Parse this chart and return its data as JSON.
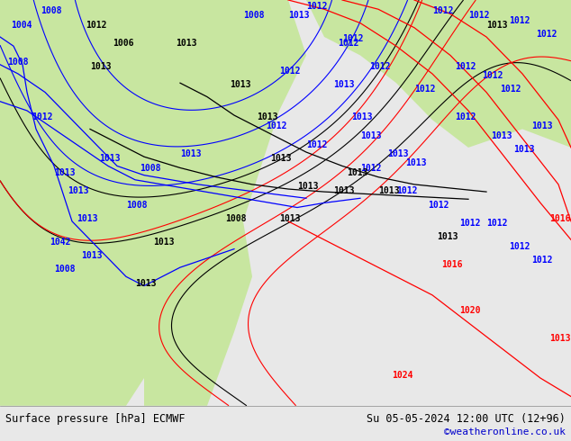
{
  "title_left": "Surface pressure [hPa] ECMWF",
  "title_right": "Su 05-05-2024 12:00 UTC (12+96)",
  "watermark": "©weatheronline.co.uk",
  "bg_color": "#e8e8e8",
  "map_bg_color": "#f0f0f0",
  "land_color": "#c8e6a0",
  "bottom_bar_color": "#f0f0f0",
  "bottom_text_color": "#000000",
  "watermark_color": "#0000cc",
  "figsize": [
    6.34,
    4.9
  ],
  "dpi": 100,
  "bottom_left_text": "Surface pressure [hPa] ECMWF",
  "bottom_right_text": "Su 05-05-2024 12:00 UTC (12+96)"
}
